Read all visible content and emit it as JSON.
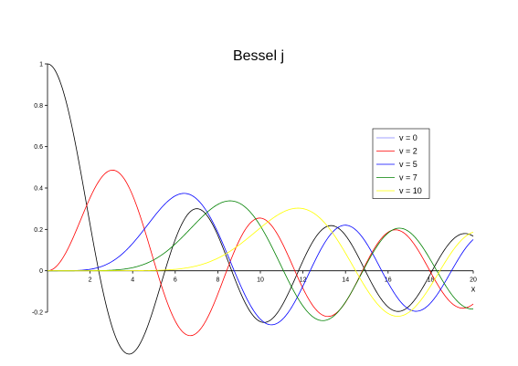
{
  "chart_data": {
    "type": "line",
    "title": "Bessel j",
    "xlabel": "x",
    "ylabel": "",
    "xlim": [
      0,
      20
    ],
    "ylim": [
      -0.2,
      1
    ],
    "xticks": [
      "2",
      "4",
      "6",
      "8",
      "10",
      "12",
      "14",
      "16",
      "18",
      "20"
    ],
    "yticks": [
      "-0.2",
      "0",
      "0.2",
      "0.4",
      "0.6",
      "0.8",
      "1"
    ],
    "grid": false,
    "legend_position": "right",
    "series": [
      {
        "name": "v = 0",
        "order": 0,
        "color": "#000000",
        "legend_color": "#8080ff"
      },
      {
        "name": "v = 2",
        "order": 2,
        "color": "#ff0000",
        "legend_color": "#ff0000"
      },
      {
        "name": "v = 5",
        "order": 5,
        "color": "#0000ff",
        "legend_color": "#0000ff"
      },
      {
        "name": "v = 7",
        "order": 7,
        "color": "#008000",
        "legend_color": "#008000"
      },
      {
        "name": "v = 10",
        "order": 10,
        "color": "#ffff00",
        "legend_color": "#ffff00"
      }
    ]
  }
}
